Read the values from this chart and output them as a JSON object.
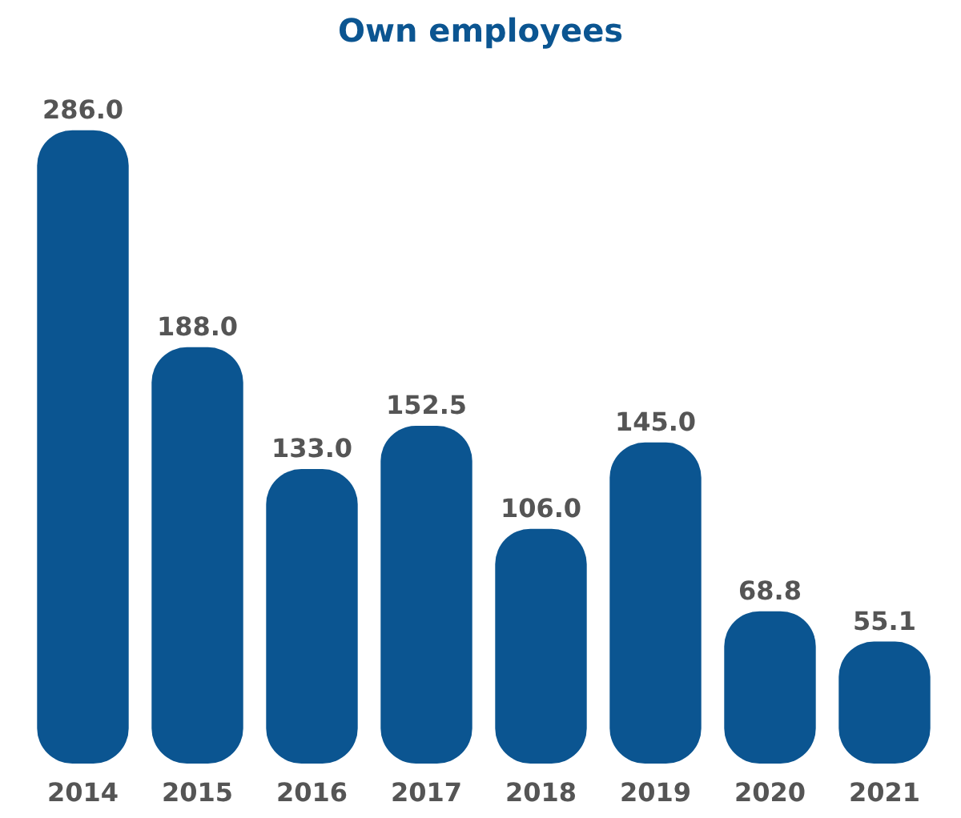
{
  "chart_data": {
    "type": "bar",
    "title": "Own employees",
    "categories": [
      "2014",
      "2015",
      "2016",
      "2017",
      "2018",
      "2019",
      "2020",
      "2021"
    ],
    "values": [
      286.0,
      188.0,
      133.0,
      152.5,
      106.0,
      145.0,
      68.8,
      55.1
    ],
    "color": "#0b5591",
    "value_labels": [
      "286.0",
      "188.0",
      "133.0",
      "152.5",
      "106.0",
      "145.0",
      "68.8",
      "55.1"
    ]
  }
}
